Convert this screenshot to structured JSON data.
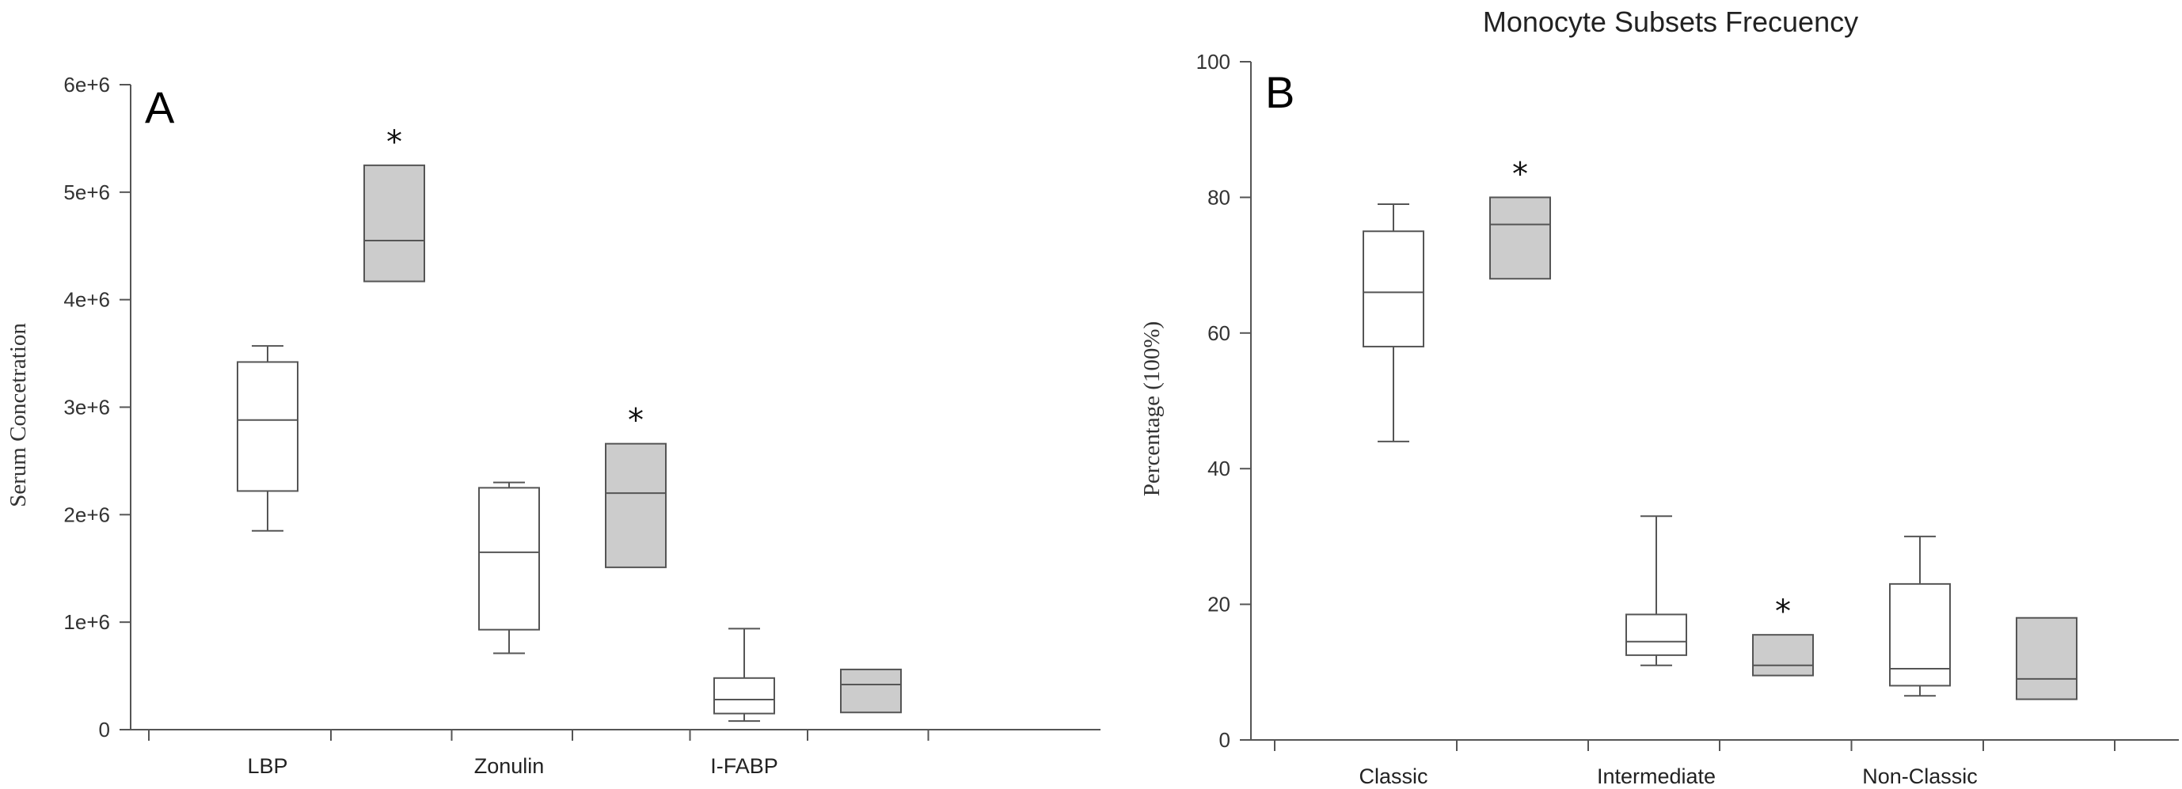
{
  "chart_data": [
    {
      "type": "box",
      "panel_label": "A",
      "title": "",
      "xlabel": "",
      "ylabel": "Serum Concetration",
      "ylim": [
        0,
        6000000
      ],
      "yticks": [
        "0",
        "1e+6",
        "2e+6",
        "3e+6",
        "4e+6",
        "5e+6",
        "6e+6"
      ],
      "categories": [
        "LBP",
        "Zonulin",
        "I-FABP"
      ],
      "colors": {
        "group1": "#ffffff",
        "group2": "#cccccc",
        "stroke": "#555555"
      },
      "groups": [
        {
          "category": "LBP",
          "boxes": [
            {
              "fill": "group1",
              "min": 1850000,
              "q1": 2220000,
              "median": 2880000,
              "q3": 3420000,
              "max": 3570000,
              "sig": ""
            },
            {
              "fill": "group2",
              "min": 4170000,
              "q1": 4170000,
              "median": 4550000,
              "q3": 5250000,
              "max": 5250000,
              "sig": "*"
            }
          ]
        },
        {
          "category": "Zonulin",
          "boxes": [
            {
              "fill": "group1",
              "min": 710000,
              "q1": 930000,
              "median": 1650000,
              "q3": 2250000,
              "max": 2300000,
              "sig": ""
            },
            {
              "fill": "group2",
              "min": 1510000,
              "q1": 1510000,
              "median": 2200000,
              "q3": 2660000,
              "max": 2660000,
              "sig": "*"
            }
          ]
        },
        {
          "category": "I-FABP",
          "boxes": [
            {
              "fill": "group1",
              "min": 80000,
              "q1": 150000,
              "median": 280000,
              "q3": 480000,
              "max": 940000,
              "sig": ""
            },
            {
              "fill": "group2",
              "min": 160000,
              "q1": 160000,
              "median": 420000,
              "q3": 560000,
              "max": 560000,
              "sig": ""
            }
          ]
        }
      ]
    },
    {
      "type": "box",
      "panel_label": "B",
      "title": "Monocyte Subsets Frecuency",
      "xlabel": "",
      "ylabel": "Percentage (100%)",
      "ylim": [
        0,
        100
      ],
      "yticks": [
        "0",
        "20",
        "40",
        "60",
        "80",
        "100"
      ],
      "categories": [
        "Classic",
        "Intermediate",
        "Non-Classic"
      ],
      "colors": {
        "group1": "#ffffff",
        "group2": "#cccccc",
        "stroke": "#555555"
      },
      "groups": [
        {
          "category": "Classic",
          "boxes": [
            {
              "fill": "group1",
              "min": 44,
              "q1": 58,
              "median": 66,
              "q3": 75,
              "max": 79,
              "sig": ""
            },
            {
              "fill": "group2",
              "min": 68,
              "q1": 68,
              "median": 76,
              "q3": 80,
              "max": 80,
              "sig": "*"
            }
          ]
        },
        {
          "category": "Intermediate",
          "boxes": [
            {
              "fill": "group1",
              "min": 11,
              "q1": 12.5,
              "median": 14.5,
              "q3": 18.5,
              "max": 33,
              "sig": ""
            },
            {
              "fill": "group2",
              "min": 9.5,
              "q1": 9.5,
              "median": 11,
              "q3": 15.5,
              "max": 15.5,
              "sig": "*"
            }
          ]
        },
        {
          "category": "Non-Classic",
          "boxes": [
            {
              "fill": "group1",
              "min": 6.5,
              "q1": 8,
              "median": 10.5,
              "q3": 23,
              "max": 30,
              "sig": ""
            },
            {
              "fill": "group2",
              "min": 6,
              "q1": 6,
              "median": 9,
              "q3": 18,
              "max": 18,
              "sig": ""
            }
          ]
        }
      ]
    }
  ]
}
